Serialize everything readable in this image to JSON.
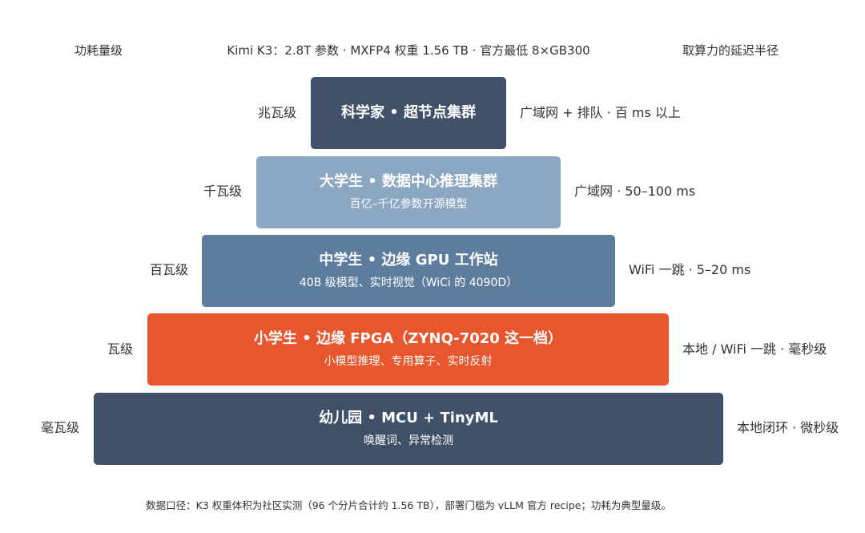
{
  "header": {
    "left": "功耗量级",
    "center": "Kimi K3：2.8T 参数 · MXFP4 权重 1.56 TB · 官方最低 8×GB300",
    "right": "取算力的延迟半径"
  },
  "tiers": [
    {
      "title": "科学家 • 超节点集群",
      "subtitle": "",
      "power": "兆瓦级",
      "latency": "广域网 + 排队 · 百 ms 以上",
      "color": "#3f5068"
    },
    {
      "title": "大学生 • 数据中心推理集群",
      "subtitle": "百亿–千亿参数开源模型",
      "power": "千瓦级",
      "latency": "广域网 · 50–100 ms",
      "color": "#8ba7c2"
    },
    {
      "title": "中学生 • 边缘 GPU 工作站",
      "subtitle": "40B 级模型、实时视觉（WiCi 的 4090D）",
      "power": "百瓦级",
      "latency": "WiFi 一跳 · 5–20 ms",
      "color": "#5e7d9e"
    },
    {
      "title": "小学生 • 边缘 FPGA（ZYNQ-7020 这一档）",
      "subtitle": "小模型推理、专用算子、实时反射",
      "power": "瓦级",
      "latency": "本地 / WiFi 一跳 · 毫秒级",
      "color": "#e8562e"
    },
    {
      "title": "幼儿园 • MCU + TinyML",
      "subtitle": "唤醒词、异常检测",
      "power": "毫瓦级",
      "latency": "本地闭环 · 微秒级",
      "color": "#3f5068"
    }
  ],
  "footnote": "数据口径：K3 权重体积为社区实测（96 个分片合计约 1.56 TB），部署门槛为 vLLM 官方 recipe；功耗为典型量级。"
}
